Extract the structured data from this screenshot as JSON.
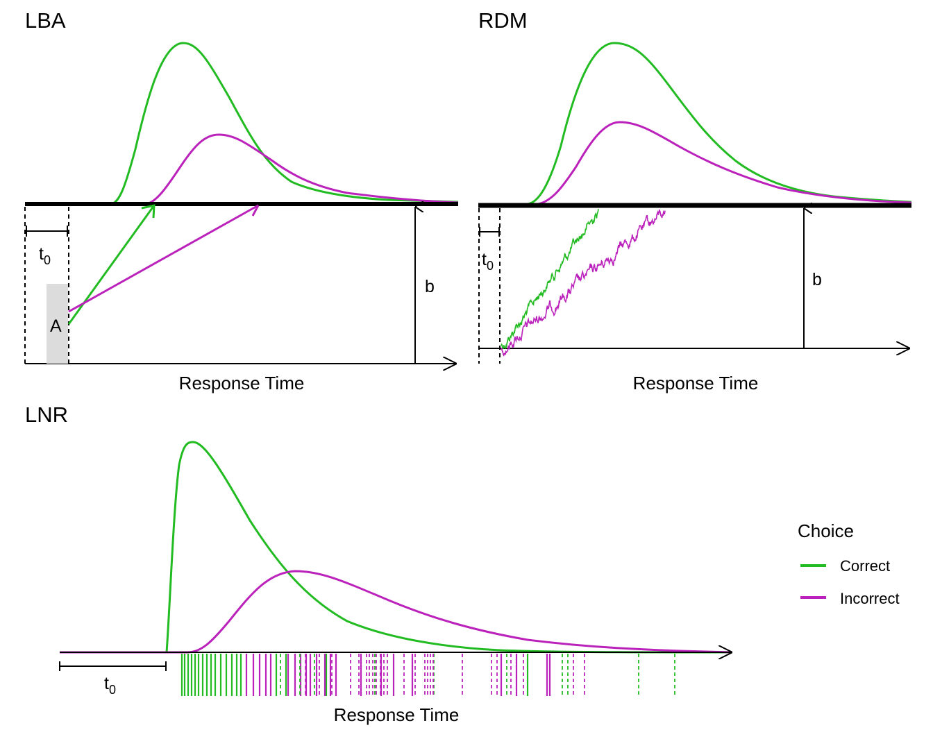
{
  "colors": {
    "correct": "#22bb22",
    "incorrect": "#bb22bb",
    "axis": "#000000",
    "shade": "#dcdcdc"
  },
  "panels": {
    "lba": {
      "title": "LBA",
      "xlabel": "Response Time",
      "t0_label": "t",
      "t0_sub": "0",
      "a_label": "A",
      "b_label": "b"
    },
    "rdm": {
      "title": "RDM",
      "xlabel": "Response Time",
      "t0_label": "t",
      "t0_sub": "0",
      "b_label": "b"
    },
    "lnr": {
      "title": "LNR",
      "xlabel": "Response Time",
      "t0_label": "t",
      "t0_sub": "0"
    }
  },
  "legend": {
    "title": "Choice",
    "items": [
      {
        "label": "Correct",
        "color": "#22bb22"
      },
      {
        "label": "Incorrect",
        "color": "#bb22bb"
      }
    ]
  }
}
